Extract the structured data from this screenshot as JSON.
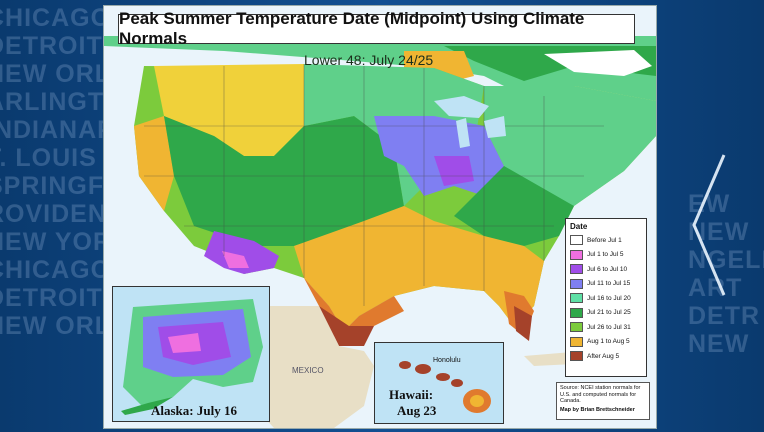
{
  "map": {
    "title": "Peak Summer Temperature Date (Midpoint) Using Climate Normals",
    "lower48_label": "Lower 48: July 24/25",
    "alaska_label": "Alaska: July 16",
    "hawaii_label_line1": "Hawaii:",
    "hawaii_label_line2": "Aug 23",
    "honolulu_label": "Honolulu",
    "mexico_label": "MEXICO",
    "legend": {
      "title": "Date",
      "items": [
        {
          "label": "Before Jul 1",
          "color": "#ffffff"
        },
        {
          "label": "Jul 1 to Jul 5",
          "color": "#ef6fe0"
        },
        {
          "label": "Jul 6 to Jul 10",
          "color": "#a04de8"
        },
        {
          "label": "Jul 11 to Jul 15",
          "color": "#7f7ff2"
        },
        {
          "label": "Jul 16 to Jul 20",
          "color": "#5fe0a6"
        },
        {
          "label": "Jul 21 to Jul 25",
          "color": "#2fa84a"
        },
        {
          "label": "Jul 26 to Jul 31",
          "color": "#7ccb3c"
        },
        {
          "label": "Aug 1 to Aug 5",
          "color": "#f0b532"
        },
        {
          "label": "After Aug 5",
          "color": "#a5422a"
        }
      ]
    },
    "source_text": "Source: NCEI station normals for U.S. and computed normals for Canada.",
    "credit": "Map by Brian Brettschneider"
  },
  "background": {
    "cities_left": [
      "CHICAGO",
      "DETROIT",
      "NEW ORLE",
      "ARLINGTON",
      "INDIANAPO",
      "T. LOUIS",
      "SPRINGF",
      "ROVIDENC",
      "NEW YORK",
      "CHICAGO",
      "DETROIT",
      "NEW ORLE"
    ],
    "cities_right": [
      "EW",
      "NEW",
      "NGELES",
      "ART",
      "DETR",
      "NEW"
    ]
  }
}
